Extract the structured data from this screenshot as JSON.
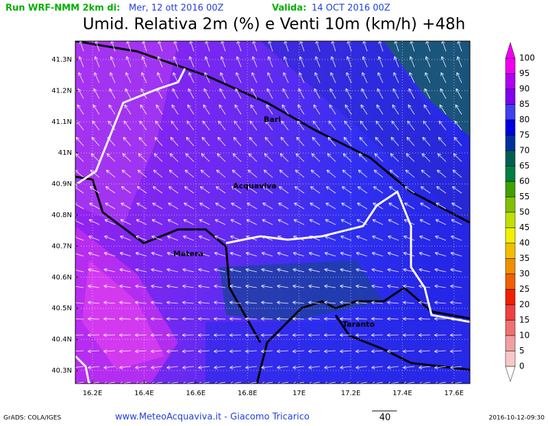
{
  "header": {
    "run_label": "Run WRF-NMM 2km di:",
    "run_date": "Mer, 12 ott 2016 00Z",
    "valid_label": "Valida:",
    "valid_date": "14 OCT 2016 00Z"
  },
  "title": "Umid. Relativa 2m (%) e Venti 10m (km/h) +48h",
  "map": {
    "lat_ticks": [
      "41.3N",
      "41.2N",
      "41.1N",
      "41N",
      "40.9N",
      "40.8N",
      "40.7N",
      "40.6N",
      "40.5N",
      "40.4N",
      "40.3N"
    ],
    "lon_ticks": [
      "16.2E",
      "16.4E",
      "16.6E",
      "16.8E",
      "17E",
      "17.2E",
      "17.4E",
      "17.6E"
    ],
    "places": [
      "Bari",
      "Acquaviva",
      "Matera",
      "Taranto"
    ]
  },
  "colorbar": {
    "levels": [
      "100",
      "95",
      "90",
      "85",
      "80",
      "75",
      "70",
      "65",
      "60",
      "55",
      "50",
      "45",
      "40",
      "35",
      "30",
      "25",
      "20",
      "15",
      "10",
      "5",
      "0"
    ]
  },
  "footer": {
    "software": "GrADS: COLA/IGES",
    "credit": "www.MeteoAcquaviva.it - Giacomo Tricarico",
    "vector_scale": "40",
    "timestamp": "2016-10-12-09:30"
  }
}
